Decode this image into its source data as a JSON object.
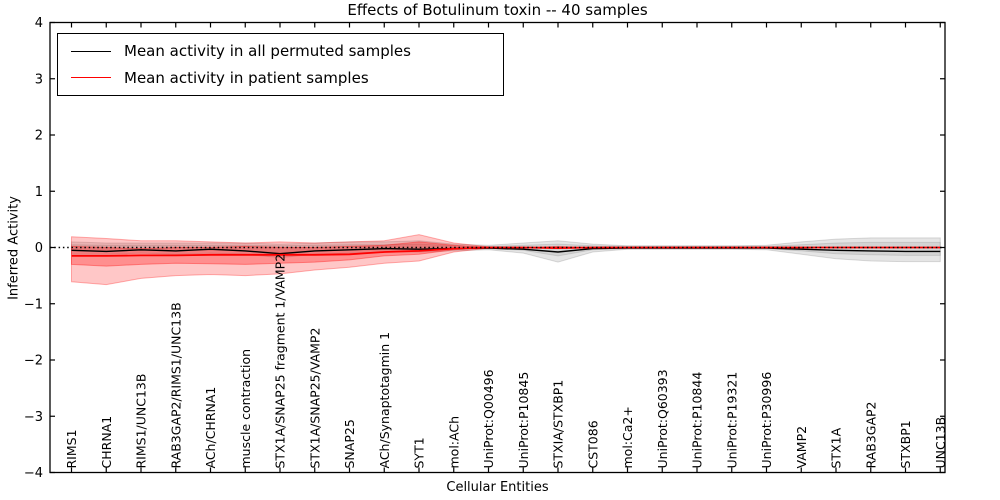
{
  "chart_data": {
    "type": "line",
    "title": "Effects of Botulinum toxin -- 40 samples",
    "xlabel": "Cellular Entities",
    "ylabel": "Inferred Activity",
    "ylim": [
      -4,
      4
    ],
    "yticks": [
      -4,
      -3,
      -2,
      -1,
      0,
      1,
      2,
      3,
      4
    ],
    "grid": false,
    "zero_line": true,
    "legend_position": "upper left",
    "categories": [
      "RIMS1",
      "CHRNA1",
      "RIMS1/UNC13B",
      "RAB3GAP2/RIMS1/UNC13B",
      "ACh/CHRNA1",
      "muscle contraction",
      "STX1A/SNAP25 fragment 1/VAMP2",
      "STX1A/SNAP25/VAMP2",
      "SNAP25",
      "ACh/Synaptotagmin 1",
      "SYT1",
      "mol:ACh",
      "UniProt:Q00496",
      "UniProt:P10845",
      "STXIA/STXBP1",
      "CST086",
      "mol:Ca2+",
      "UniProt:Q60393",
      "UniProt:P10844",
      "UniProt:P19321",
      "UniProt:P30996",
      "VAMP2",
      "STX1A",
      "RAB3GAP2",
      "STXBP1",
      "UNC13B"
    ],
    "series": [
      {
        "name": "Mean activity in all permuted samples",
        "color": "#000000",
        "width": 1.4,
        "values": [
          -0.05,
          -0.07,
          -0.04,
          -0.06,
          -0.03,
          -0.06,
          -0.11,
          -0.06,
          -0.04,
          -0.02,
          -0.03,
          -0.02,
          -0.01,
          -0.03,
          -0.08,
          -0.02,
          -0.01,
          -0.01,
          -0.01,
          -0.01,
          -0.01,
          -0.03,
          -0.05,
          -0.06,
          -0.07,
          -0.07
        ]
      },
      {
        "name": "Mean activity in patient samples",
        "color": "#ff0000",
        "width": 1.8,
        "values": [
          -0.15,
          -0.15,
          -0.14,
          -0.14,
          -0.13,
          -0.13,
          -0.13,
          -0.13,
          -0.12,
          -0.08,
          -0.06,
          -0.02,
          0,
          0,
          -0.01,
          0,
          0,
          0,
          0,
          0,
          0,
          0,
          0,
          0,
          0,
          0
        ]
      }
    ],
    "bands": [
      {
        "name": "permuted-outer-band",
        "fill": "rgba(0,0,0,0.10)",
        "stroke": "rgba(0,0,0,0.13)",
        "low": [
          -0.12,
          -0.12,
          -0.1,
          -0.12,
          -0.1,
          -0.12,
          -0.18,
          -0.12,
          -0.1,
          -0.08,
          -0.08,
          -0.06,
          -0.04,
          -0.1,
          -0.26,
          -0.08,
          -0.03,
          -0.03,
          -0.03,
          -0.03,
          -0.04,
          -0.12,
          -0.2,
          -0.24,
          -0.25,
          -0.25
        ],
        "high": [
          0.1,
          0.08,
          0.08,
          0.08,
          0.08,
          0.08,
          0.06,
          0.08,
          0.1,
          0.1,
          0.12,
          0.06,
          0.04,
          0.08,
          0.12,
          0.06,
          0.03,
          0.03,
          0.03,
          0.03,
          0.04,
          0.1,
          0.15,
          0.17,
          0.17,
          0.17
        ]
      },
      {
        "name": "permuted-inner-band",
        "fill": "rgba(0,0,0,0.08)",
        "stroke": "rgba(0,0,0,0.10)",
        "low": [
          -0.06,
          -0.06,
          -0.05,
          -0.06,
          -0.05,
          -0.06,
          -0.09,
          -0.06,
          -0.05,
          -0.04,
          -0.04,
          -0.03,
          -0.02,
          -0.05,
          -0.15,
          -0.04,
          -0.02,
          -0.02,
          -0.02,
          -0.02,
          -0.02,
          -0.06,
          -0.11,
          -0.13,
          -0.14,
          -0.14
        ],
        "high": [
          0.05,
          0.04,
          0.04,
          0.04,
          0.04,
          0.04,
          0.03,
          0.04,
          0.05,
          0.05,
          0.06,
          0.03,
          0.02,
          0.04,
          0.06,
          0.03,
          0.02,
          0.02,
          0.02,
          0.02,
          0.02,
          0.05,
          0.08,
          0.09,
          0.09,
          0.09
        ]
      },
      {
        "name": "patient-outer-band",
        "fill": "rgba(255,0,0,0.22)",
        "stroke": "rgba(255,0,0,0.30)",
        "low": [
          -0.61,
          -0.66,
          -0.55,
          -0.5,
          -0.48,
          -0.5,
          -0.47,
          -0.4,
          -0.35,
          -0.28,
          -0.24,
          -0.08,
          -0.01,
          0,
          -0.02,
          0,
          0,
          0,
          0,
          0,
          0,
          0,
          0,
          0,
          0,
          0
        ],
        "high": [
          0.19,
          0.16,
          0.12,
          0.12,
          0.1,
          0.08,
          0.1,
          0.08,
          0.1,
          0.12,
          0.23,
          0.08,
          0.01,
          0,
          0.02,
          0,
          0,
          0,
          0,
          0,
          0,
          0,
          0,
          0,
          0,
          0
        ]
      },
      {
        "name": "patient-inner-band",
        "fill": "rgba(255,0,0,0.28)",
        "stroke": "rgba(255,0,0,0.35)",
        "low": [
          -0.3,
          -0.33,
          -0.3,
          -0.28,
          -0.29,
          -0.3,
          -0.28,
          -0.26,
          -0.22,
          -0.15,
          -0.12,
          -0.04,
          0,
          0,
          -0.01,
          0,
          0,
          0,
          0,
          0,
          0,
          0,
          0,
          0,
          0,
          0
        ],
        "high": [
          0.02,
          0,
          -0.02,
          0,
          0,
          0.02,
          0,
          0,
          0.02,
          0.04,
          0.1,
          0.04,
          0,
          0,
          0.01,
          0,
          0,
          0,
          0,
          0,
          0,
          0,
          0,
          0,
          0,
          0
        ]
      }
    ]
  }
}
